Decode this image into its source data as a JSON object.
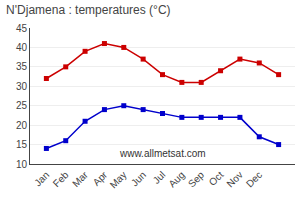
{
  "chart_data": {
    "type": "line",
    "title": "N'Djamena : temperatures (°C)",
    "categories": [
      "Jan",
      "Feb",
      "Mar",
      "Apr",
      "May",
      "Jun",
      "Jul",
      "Aug",
      "Sep",
      "Oct",
      "Nov",
      "Dec",
      null
    ],
    "series": [
      {
        "color": "#cc0000",
        "marker": "square",
        "values": [
          32,
          35,
          39,
          41,
          40,
          37,
          33,
          31,
          31,
          34,
          37,
          36,
          33
        ]
      },
      {
        "color": "#0000cc",
        "marker": "square",
        "values": [
          14,
          16,
          21,
          24,
          25,
          24,
          23,
          22,
          22,
          22,
          22,
          17,
          15
        ]
      }
    ],
    "ylim": [
      10,
      45
    ],
    "yticks": [
      10,
      15,
      20,
      25,
      30,
      35,
      40,
      45
    ],
    "grid": true,
    "annotations": [
      "www.allmetsat.com"
    ]
  }
}
